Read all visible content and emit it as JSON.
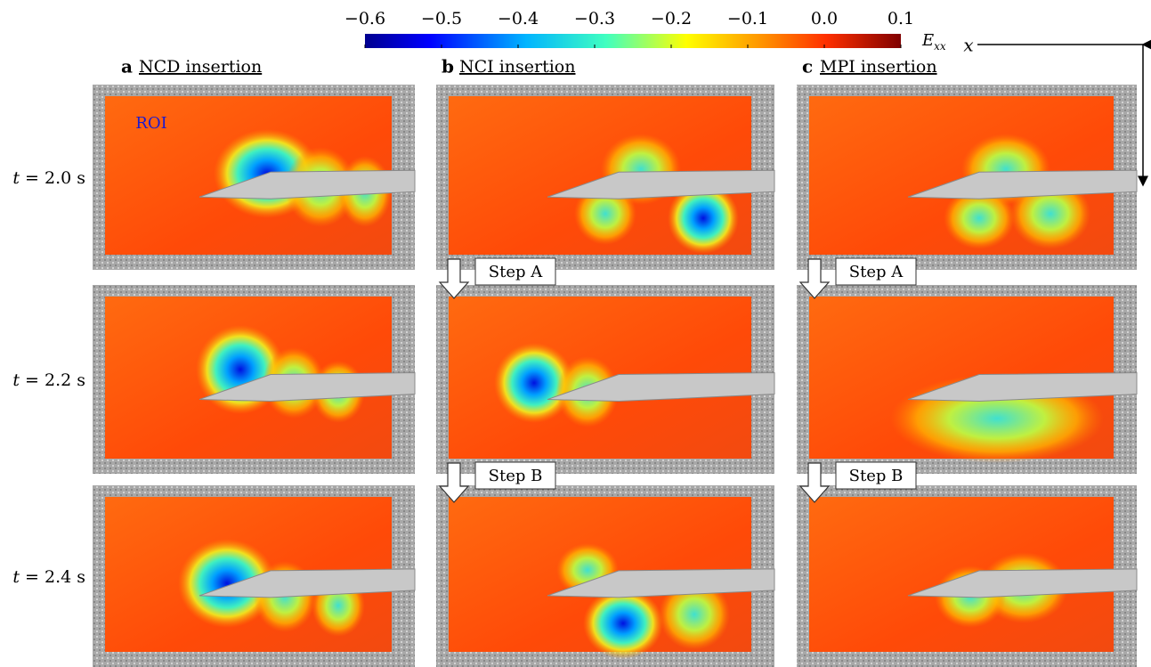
{
  "colorbar": {
    "range": [
      -0.6,
      0.1
    ],
    "ticks": [
      {
        "value": -0.6,
        "label": "−0.6"
      },
      {
        "value": -0.5,
        "label": "−0.5"
      },
      {
        "value": -0.4,
        "label": "−0.4"
      },
      {
        "value": -0.3,
        "label": "−0.3"
      },
      {
        "value": -0.2,
        "label": "−0.2"
      },
      {
        "value": -0.1,
        "label": "−0.1"
      },
      {
        "value": 0,
        "label": "0.0"
      },
      {
        "value": 0.1,
        "label": "0.1"
      }
    ],
    "label": "E",
    "label_subscript": "xx"
  },
  "axis_label": "x",
  "panels": [
    {
      "letter": "a",
      "title": "NCD insertion"
    },
    {
      "letter": "b",
      "title": "NCI insertion"
    },
    {
      "letter": "c",
      "title": "MPI insertion"
    }
  ],
  "rows": [
    {
      "variable": "t",
      "value": "= 2.0 s"
    },
    {
      "variable": "t",
      "value": "= 2.2 s"
    },
    {
      "variable": "t",
      "value": "= 2.4 s"
    }
  ],
  "roi_label": "ROI",
  "steps": {
    "b": [
      "Step A",
      "Step B"
    ],
    "c": [
      "Step A",
      "Step B"
    ]
  }
}
